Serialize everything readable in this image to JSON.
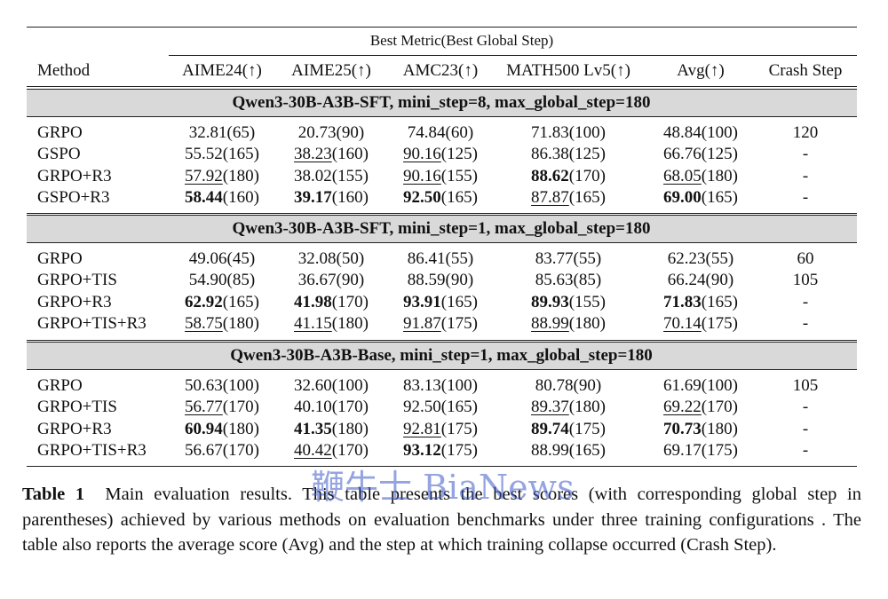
{
  "table": {
    "group_header": "Best Metric(Best Global Step)",
    "columns": [
      "Method",
      "AIME24(↑)",
      "AIME25(↑)",
      "AMC23(↑)",
      "MATH500 Lv5(↑)",
      "Avg(↑)",
      "Crash Step"
    ],
    "sections": [
      {
        "title": "Qwen3-30B-A3B-SFT, mini_step=8, max_global_step=180",
        "rows": [
          {
            "method": "GRPO",
            "cells": [
              {
                "score": "32.81",
                "step": "(65)"
              },
              {
                "score": "20.73",
                "step": "(90)"
              },
              {
                "score": "74.84",
                "step": "(60)"
              },
              {
                "score": "71.83",
                "step": "(100)"
              },
              {
                "score": "48.84",
                "step": "(100)"
              }
            ],
            "crash": "120"
          },
          {
            "method": "GSPO",
            "cells": [
              {
                "score": "55.52",
                "step": "(165)"
              },
              {
                "score": "38.23",
                "step": "(160)",
                "style": "u"
              },
              {
                "score": "90.16",
                "step": "(125)",
                "style": "u"
              },
              {
                "score": "86.38",
                "step": "(125)"
              },
              {
                "score": "66.76",
                "step": "(125)"
              }
            ],
            "crash": "-"
          },
          {
            "method": "GRPO+R3",
            "cells": [
              {
                "score": "57.92",
                "step": "(180)",
                "style": "u"
              },
              {
                "score": "38.02",
                "step": "(155)"
              },
              {
                "score": "90.16",
                "step": "(155)",
                "style": "u"
              },
              {
                "score": "88.62",
                "step": "(170)",
                "style": "b"
              },
              {
                "score": "68.05",
                "step": "(180)",
                "style": "u"
              }
            ],
            "crash": "-"
          },
          {
            "method": "GSPO+R3",
            "cells": [
              {
                "score": "58.44",
                "step": "(160)",
                "style": "b"
              },
              {
                "score": "39.17",
                "step": "(160)",
                "style": "b"
              },
              {
                "score": "92.50",
                "step": "(165)",
                "style": "b"
              },
              {
                "score": "87.87",
                "step": "(165)",
                "style": "u"
              },
              {
                "score": "69.00",
                "step": "(165)",
                "style": "b"
              }
            ],
            "crash": "-"
          }
        ]
      },
      {
        "title": "Qwen3-30B-A3B-SFT, mini_step=1, max_global_step=180",
        "rows": [
          {
            "method": "GRPO",
            "cells": [
              {
                "score": "49.06",
                "step": "(45)"
              },
              {
                "score": "32.08",
                "step": "(50)"
              },
              {
                "score": "86.41",
                "step": "(55)"
              },
              {
                "score": "83.77",
                "step": "(55)"
              },
              {
                "score": "62.23",
                "step": "(55)"
              }
            ],
            "crash": "60"
          },
          {
            "method": "GRPO+TIS",
            "cells": [
              {
                "score": "54.90",
                "step": "(85)"
              },
              {
                "score": "36.67",
                "step": "(90)"
              },
              {
                "score": "88.59",
                "step": "(90)"
              },
              {
                "score": "85.63",
                "step": "(85)"
              },
              {
                "score": "66.24",
                "step": "(90)"
              }
            ],
            "crash": "105"
          },
          {
            "method": "GRPO+R3",
            "cells": [
              {
                "score": "62.92",
                "step": "(165)",
                "style": "b"
              },
              {
                "score": "41.98",
                "step": "(170)",
                "style": "b"
              },
              {
                "score": "93.91",
                "step": "(165)",
                "style": "b"
              },
              {
                "score": "89.93",
                "step": "(155)",
                "style": "b"
              },
              {
                "score": "71.83",
                "step": "(165)",
                "style": "b"
              }
            ],
            "crash": "-"
          },
          {
            "method": "GRPO+TIS+R3",
            "cells": [
              {
                "score": "58.75",
                "step": "(180)",
                "style": "u"
              },
              {
                "score": "41.15",
                "step": "(180)",
                "style": "u"
              },
              {
                "score": "91.87",
                "step": "(175)",
                "style": "u"
              },
              {
                "score": "88.99",
                "step": "(180)",
                "style": "u"
              },
              {
                "score": "70.14",
                "step": "(175)",
                "style": "u"
              }
            ],
            "crash": "-"
          }
        ]
      },
      {
        "title": "Qwen3-30B-A3B-Base, mini_step=1, max_global_step=180",
        "rows": [
          {
            "method": "GRPO",
            "cells": [
              {
                "score": "50.63",
                "step": "(100)"
              },
              {
                "score": "32.60",
                "step": "(100)"
              },
              {
                "score": "83.13",
                "step": "(100)"
              },
              {
                "score": "80.78",
                "step": "(90)"
              },
              {
                "score": "61.69",
                "step": "(100)"
              }
            ],
            "crash": "105"
          },
          {
            "method": "GRPO+TIS",
            "cells": [
              {
                "score": "56.77",
                "step": "(170)",
                "style": "u"
              },
              {
                "score": "40.10",
                "step": "(170)"
              },
              {
                "score": "92.50",
                "step": "(165)"
              },
              {
                "score": "89.37",
                "step": "(180)",
                "style": "u"
              },
              {
                "score": "69.22",
                "step": "(170)",
                "style": "u"
              }
            ],
            "crash": "-"
          },
          {
            "method": "GRPO+R3",
            "cells": [
              {
                "score": "60.94",
                "step": "(180)",
                "style": "b"
              },
              {
                "score": "41.35",
                "step": "(180)",
                "style": "b"
              },
              {
                "score": "92.81",
                "step": "(175)",
                "style": "u"
              },
              {
                "score": "89.74",
                "step": "(175)",
                "style": "b"
              },
              {
                "score": "70.73",
                "step": "(180)",
                "style": "b"
              }
            ],
            "crash": "-"
          },
          {
            "method": "GRPO+TIS+R3",
            "cells": [
              {
                "score": "56.67",
                "step": "(170)"
              },
              {
                "score": "40.42",
                "step": "(170)",
                "style": "u"
              },
              {
                "score": "93.12",
                "step": "(175)",
                "style": "b"
              },
              {
                "score": "88.99",
                "step": "(165)"
              },
              {
                "score": "69.17",
                "step": "(175)"
              }
            ],
            "crash": "-"
          }
        ]
      }
    ]
  },
  "caption": {
    "label": "Table 1",
    "text": "Main evaluation results. This table presents the best scores (with corresponding global step in parentheses) achieved by various methods on evaluation benchmarks under three training configurations . The table also reports the average score (Avg) and the step at which training collapse occurred (Crash Step)."
  },
  "watermark": "鞭牛士 BiaNews"
}
